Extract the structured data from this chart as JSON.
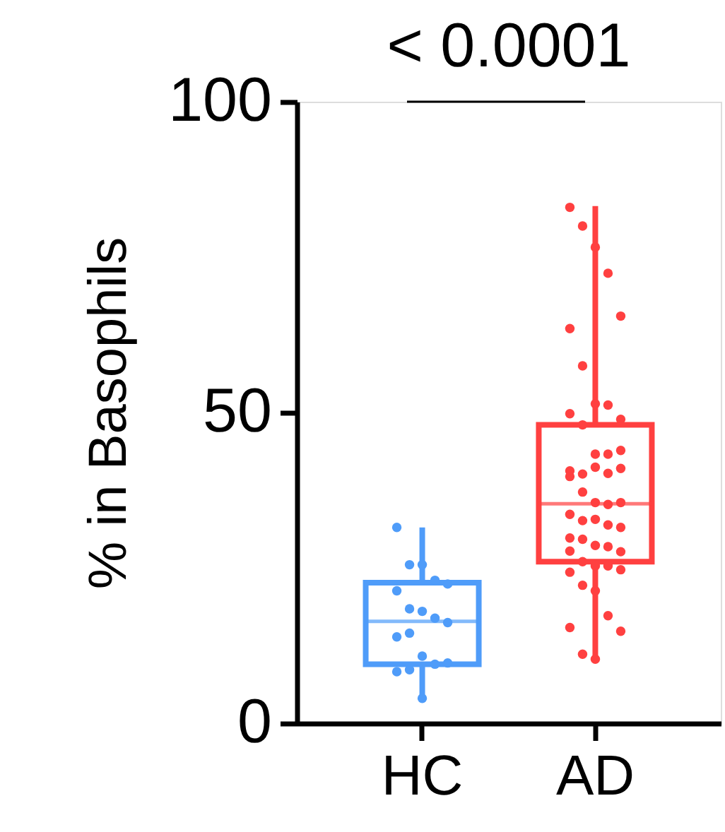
{
  "chart_data": {
    "type": "box",
    "categories": [
      "HC",
      "AD"
    ],
    "ylabel": "% in Basophils",
    "ylim": [
      0,
      100
    ],
    "yticks": [
      0,
      50,
      100
    ],
    "grid": false,
    "boxes": [
      {
        "low": 4.0,
        "q1": 9.5,
        "median": 16.4,
        "q3": 22.6,
        "high": 31.5
      },
      {
        "low": 10.3,
        "q1": 26.0,
        "median": 35.3,
        "q3": 48.0,
        "high": 83.2
      }
    ],
    "colors": [
      "#4f9cf9",
      "#ff4040"
    ],
    "series": [
      {
        "type": "scatter",
        "color": "#4f9cf9",
        "x": [
          "HC",
          "HC",
          "HC",
          "HC",
          "HC",
          "HC",
          "HC",
          "HC",
          "HC",
          "HC",
          "HC",
          "HC",
          "HC",
          "HC",
          "HC",
          "HC",
          "HC",
          "HC"
        ],
        "values": [
          31.5,
          25.5,
          25.5,
          23.0,
          22.4,
          21.3,
          18.4,
          18.0,
          16.9,
          16.2,
          13.9,
          14.5,
          10.8,
          9.5,
          9.7,
          8.3,
          8.6,
          4.0
        ]
      },
      {
        "type": "scatter",
        "color": "#ff4040",
        "x": [
          "AD",
          "AD",
          "AD",
          "AD",
          "AD",
          "AD",
          "AD",
          "AD",
          "AD",
          "AD",
          "AD",
          "AD",
          "AD",
          "AD",
          "AD",
          "AD",
          "AD",
          "AD",
          "AD",
          "AD",
          "AD",
          "AD",
          "AD",
          "AD",
          "AD",
          "AD",
          "AD",
          "AD",
          "AD",
          "AD",
          "AD",
          "AD",
          "AD",
          "AD",
          "AD",
          "AD",
          "AD",
          "AD",
          "AD",
          "AD",
          "AD",
          "AD",
          "AD",
          "AD",
          "AD",
          "AD",
          "AD",
          "AD"
        ],
        "values": [
          83.0,
          80.0,
          76.6,
          72.4,
          65.5,
          63.5,
          57.5,
          51.4,
          51.2,
          48.9,
          49.8,
          48.0,
          43.3,
          43.3,
          43.9,
          40.6,
          40.1,
          41.2,
          40.2,
          41.0,
          39.7,
          37.2,
          35.5,
          35.2,
          35.5,
          33.6,
          32.6,
          32.8,
          31.9,
          31.5,
          29.8,
          29.6,
          28.6,
          28.4,
          27.6,
          27.7,
          26.0,
          25.3,
          25.3,
          24.7,
          24.3,
          22.2,
          21.3,
          17.3,
          14.8,
          15.4,
          11.1,
          10.3
        ]
      }
    ],
    "marker": "circle",
    "annotations": [
      "< 0.0001"
    ]
  }
}
